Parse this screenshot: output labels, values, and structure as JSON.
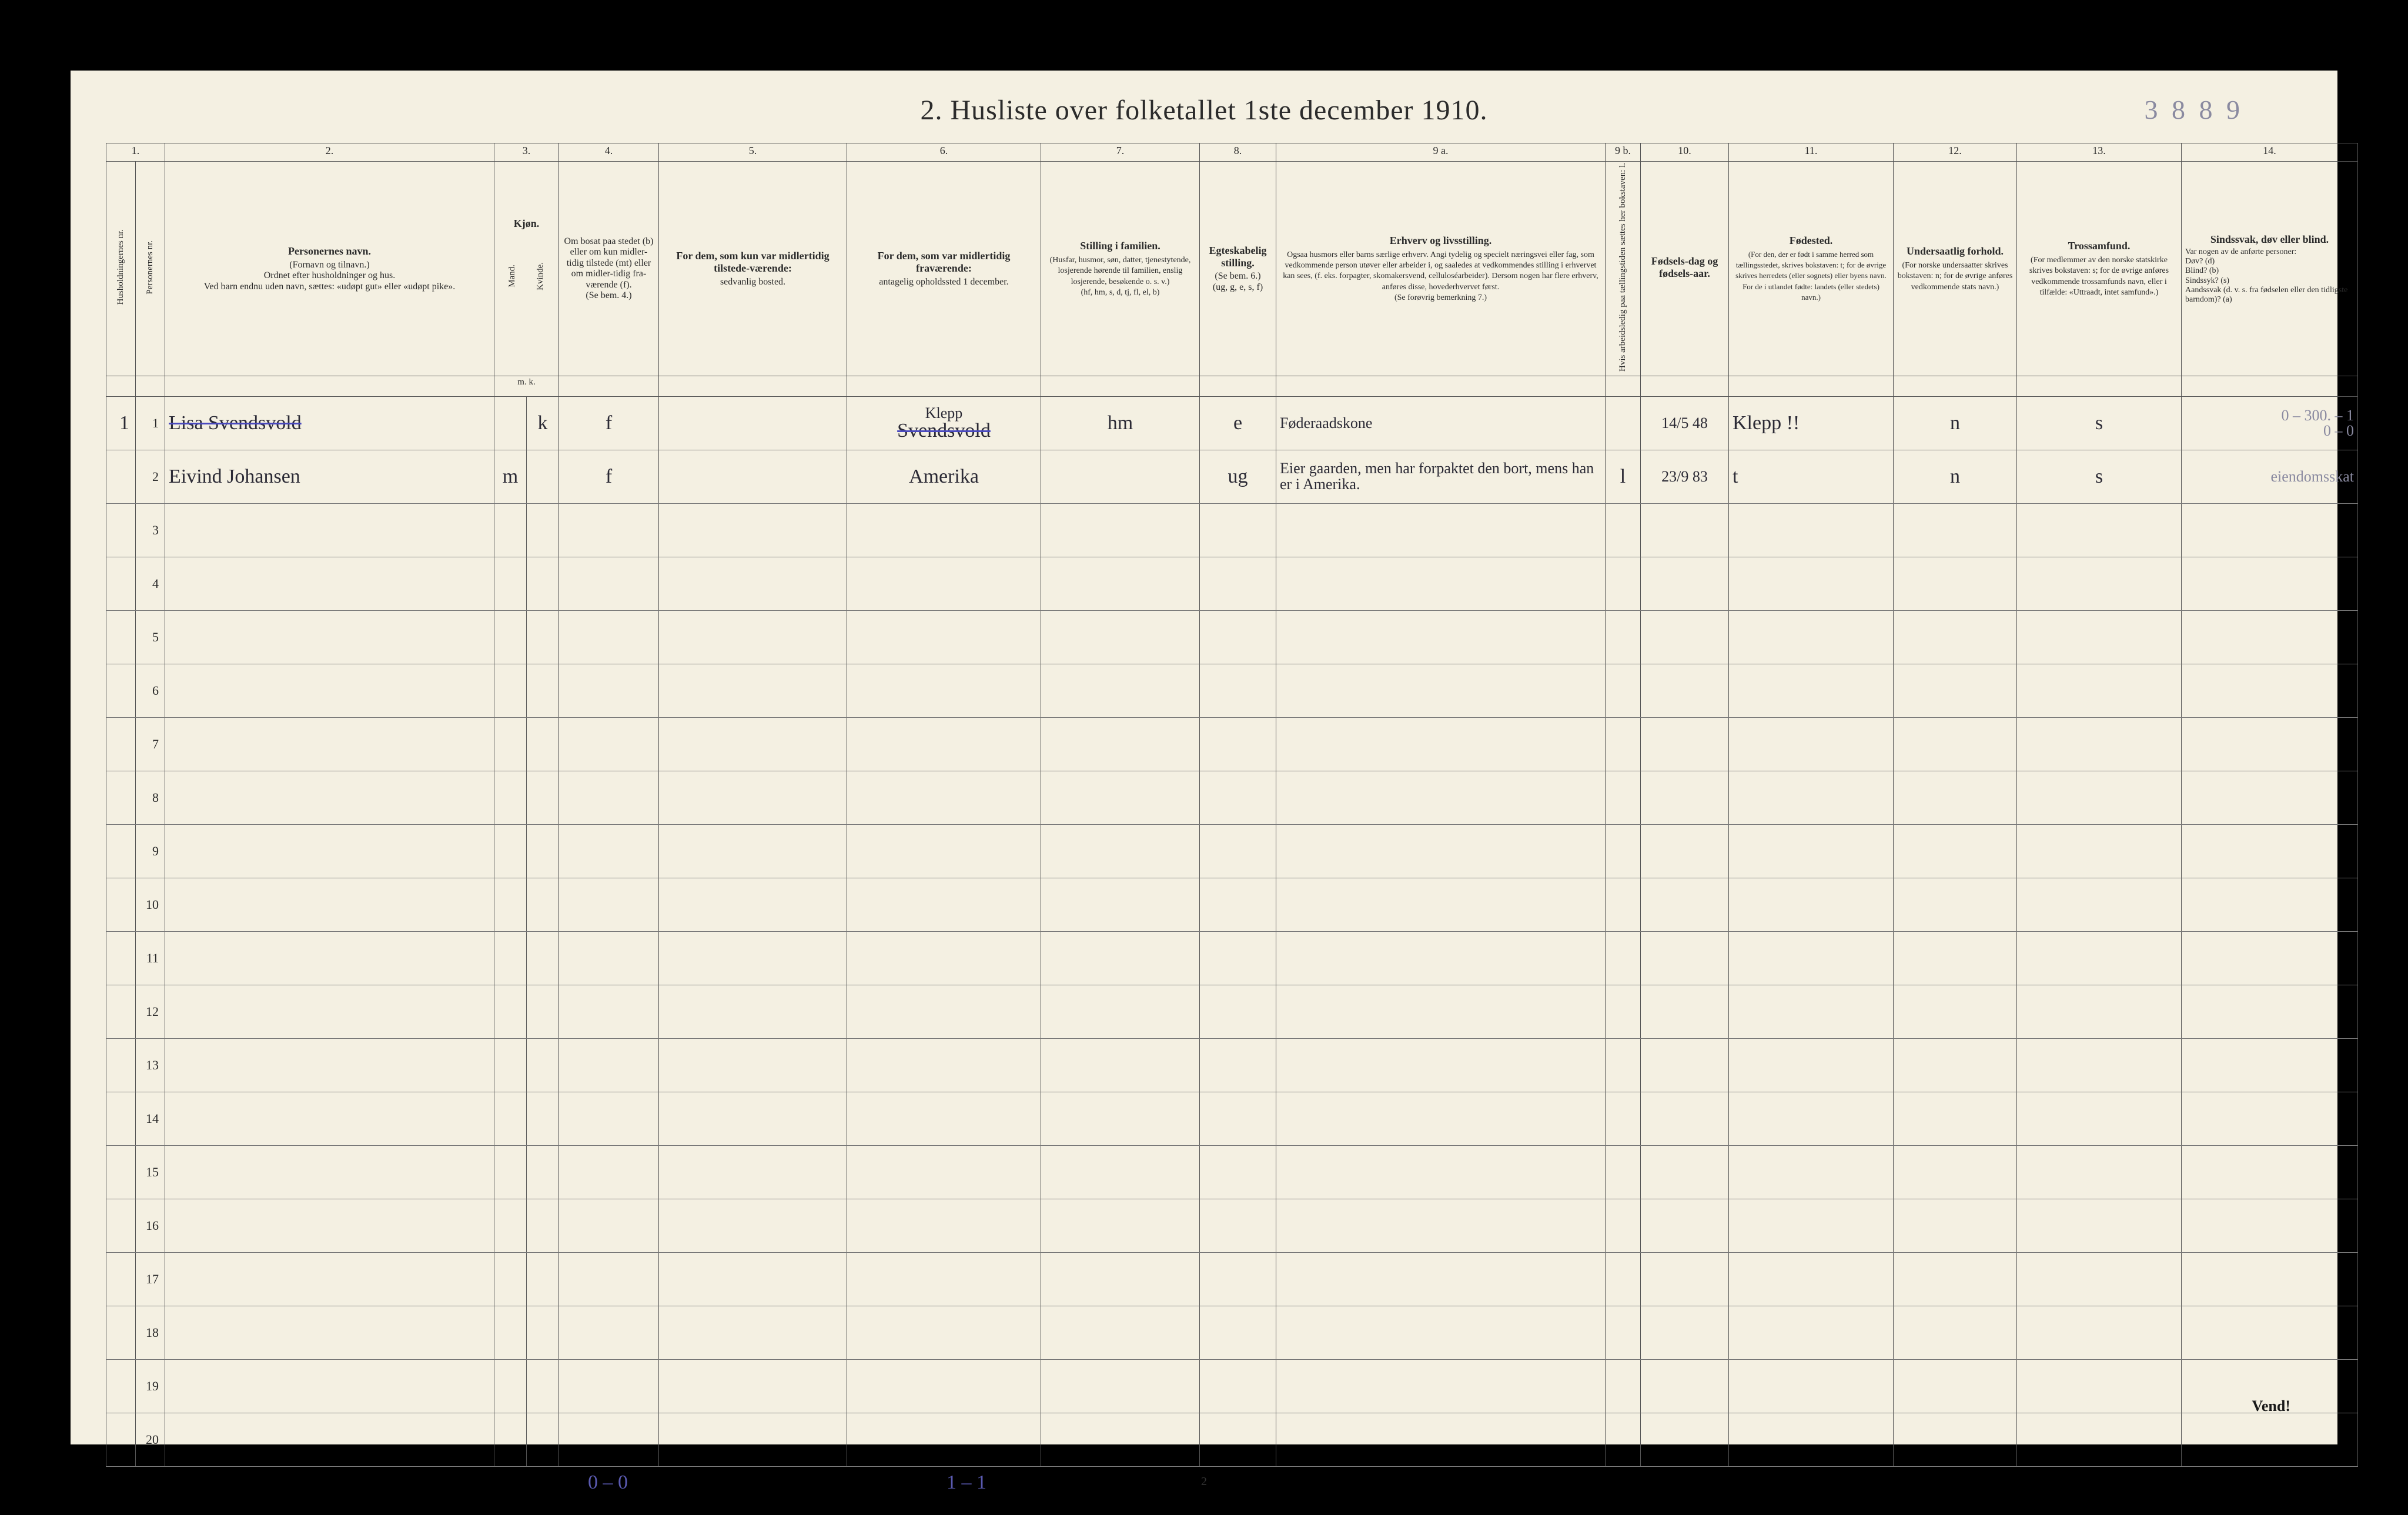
{
  "page": {
    "title": "2.  Husliste over folketallet 1ste december 1910.",
    "annotation_topright": "3 8 8 9",
    "page_number_bottom": "2",
    "vend": "Vend!",
    "foot_left": "0 – 0",
    "foot_mid": "1 – 1"
  },
  "columns": {
    "nums": [
      "1.",
      "2.",
      "3.",
      "4.",
      "5.",
      "6.",
      "7.",
      "8.",
      "9 a.",
      "9 b.",
      "10.",
      "11.",
      "12.",
      "13.",
      "14."
    ],
    "c1": "Husholdningernes nr.",
    "c1b": "Personernes nr.",
    "c2_title": "Personernes navn.",
    "c2_sub": "(Fornavn og tilnavn.)\nOrdnet efter husholdninger og hus.\nVed barn endnu uden navn, sættes: «udøpt gut» eller «udøpt pike».",
    "c3_title": "Kjøn.",
    "c3_m": "Mand.",
    "c3_k": "Kvinde.",
    "c3_mk": "m.  k.",
    "c4_title": "Om bosat paa stedet (b) eller om kun midler-tidig tilstede (mt) eller om midler-tidig fra-værende (f).",
    "c4_sub": "(Se bem. 4.)",
    "c5_title": "For dem, som kun var midlertidig tilstede-værende:",
    "c5_sub": "sedvanlig bosted.",
    "c6_title": "For dem, som var midlertidig fraværende:",
    "c6_sub": "antagelig opholdssted 1 december.",
    "c7_title": "Stilling i familien.",
    "c7_sub": "(Husfar, husmor, søn, datter, tjenestytende, losjerende hørende til familien, enslig losjerende, besøkende o. s. v.)\n(hf, hm, s, d, tj, fl, el, b)",
    "c8_title": "Egteskabelig stilling.",
    "c8_sub": "(Se bem. 6.)\n(ug, g, e, s, f)",
    "c9a_title": "Erhverv og livsstilling.",
    "c9a_sub": "Ogsaa husmors eller barns særlige erhverv. Angi tydelig og specielt næringsvei eller fag, som vedkommende person utøver eller arbeider i, og saaledes at vedkommendes stilling i erhvervet kan sees, (f. eks. forpagter, skomakersvend, celluloséarbeider). Dersom nogen har flere erhverv, anføres disse, hovederhvervet først.\n(Se forøvrig bemerkning 7.)",
    "c9b": "Hvis arbeidsledig paa tællingstiden sættes her bokstaven: l.",
    "c10_title": "Fødsels-dag og fødsels-aar.",
    "c11_title": "Fødested.",
    "c11_sub": "(For den, der er født i samme herred som tællingsstedet, skrives bokstaven: t; for de øvrige skrives herredets (eller sognets) eller byens navn. For de i utlandet fødte: landets (eller stedets) navn.)",
    "c12_title": "Undersaatlig forhold.",
    "c12_sub": "(For norske undersaatter skrives bokstaven: n; for de øvrige anføres vedkommende stats navn.)",
    "c13_title": "Trossamfund.",
    "c13_sub": "(For medlemmer av den norske statskirke skrives bokstaven: s; for de øvrige anføres vedkommende trossamfunds navn, eller i tilfælde: «Uttraadt, intet samfund».)",
    "c14_title": "Sindssvak, døv eller blind.",
    "c14_sub": "Var nogen av de anførte personer:\nDøv?    (d)\nBlind?  (b)\nSindssyk? (s)\nAandssvak (d. v. s. fra fødselen eller den tidligste barndom)? (a)"
  },
  "rows": [
    {
      "n": "1",
      "name": "Lisa Svendsvold",
      "struck": true,
      "sex": "k",
      "c4": "f",
      "c5": "",
      "c6_top": "Klepp",
      "c6_bottom": "Svendsvold",
      "c7": "hm",
      "c8": "e",
      "c9a": "Føderaadskone",
      "c9b": "",
      "c10": "14/5 48",
      "c11": "Klepp !!",
      "c12": "n",
      "c13": "s",
      "c14_top": "0 – 300. – 1",
      "c14_bottom": "0 – 0"
    },
    {
      "n": "2",
      "name": "Eivind Johansen",
      "struck": false,
      "sex": "m",
      "c4": "f",
      "c5": "",
      "c6_top": "",
      "c6_bottom": "Amerika",
      "c7": "",
      "c8": "ug",
      "c9a": "Eier gaarden, men har forpaktet den bort, mens han er i Amerika.",
      "c9b": "l",
      "c10": "23/9 83",
      "c11": "t",
      "c12": "n",
      "c13": "s",
      "c14_top": "",
      "c14_bottom": "eiendomsskat"
    }
  ],
  "empty_rows": [
    "3",
    "4",
    "5",
    "6",
    "7",
    "8",
    "9",
    "10",
    "11",
    "12",
    "13",
    "14",
    "15",
    "16",
    "17",
    "18",
    "19",
    "20"
  ]
}
